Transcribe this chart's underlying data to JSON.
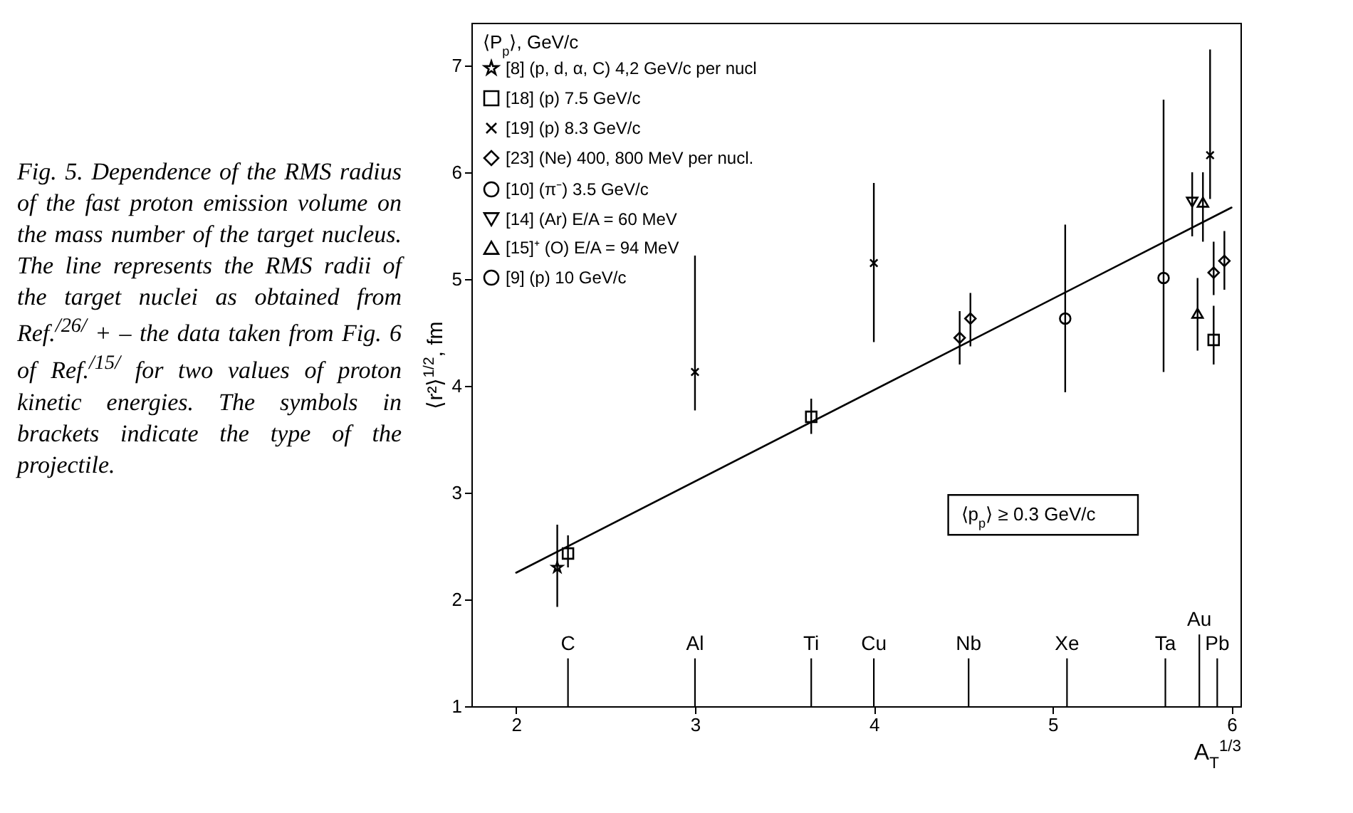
{
  "chart_data": {
    "type": "scatter",
    "xlabel": "A$_{T}$$^{1/3}$",
    "ylabel": "⟨r²⟩$^{1/2}$, fm",
    "legend_title": "⟨P$_{p}$⟩, GeV/c",
    "legend": "top left",
    "grid": false,
    "xlim": [
      1.75,
      6.05
    ],
    "xticks": [
      2,
      3,
      4,
      5,
      6
    ],
    "ylim": [
      1,
      7.4
    ],
    "yticks": [
      1,
      2,
      3,
      4,
      5,
      6,
      7
    ],
    "series": [
      {
        "name": "[8] (p, d, α, C) 4,2 GeV/c per nucl",
        "color": "#000000",
        "marker": "star",
        "x": [
          2.23
        ],
        "values": [
          2.3
        ],
        "errors": [
          [
            1.93,
            2.7
          ]
        ]
      },
      {
        "name": "[18] (p) 7.5 GeV/c",
        "color": "#000000",
        "marker": "square",
        "x": [
          2.29,
          3.65,
          5.9
        ],
        "values": [
          2.43,
          3.71,
          4.43
        ],
        "errors": [
          [
            2.3,
            2.6
          ],
          [
            3.55,
            3.88
          ],
          [
            4.2,
            4.75
          ]
        ]
      },
      {
        "name": "[19] (p) 8.3 GeV/c",
        "color": "#000000",
        "marker": "cross",
        "x": [
          3.0,
          4.0,
          5.88
        ],
        "values": [
          4.13,
          5.15,
          6.16
        ],
        "errors": [
          [
            3.77,
            5.22
          ],
          [
            4.41,
            5.9
          ],
          [
            5.75,
            7.15
          ]
        ]
      },
      {
        "name": "[23] (Ne) 400, 800 MeV per nucl.",
        "color": "#000000",
        "marker": "diamond",
        "x": [
          4.48,
          5.9
        ],
        "values": [
          4.45,
          5.06
        ],
        "errors": [
          [
            4.2,
            4.7
          ],
          [
            4.85,
            5.35
          ]
        ]
      },
      {
        "color": "#000000",
        "marker": "diamond",
        "x": [
          4.54,
          5.96
        ],
        "values": [
          4.63,
          5.17
        ],
        "errors": [
          [
            4.37,
            4.87
          ],
          [
            4.9,
            5.45
          ]
        ]
      },
      {
        "name": "[10] (π⁻) 3.5 GeV/c",
        "color": "#000000",
        "marker": "circle",
        "x": [
          5.07
        ],
        "values": [
          4.63
        ],
        "errors": [
          [
            3.94,
            5.51
          ]
        ]
      },
      {
        "name": "[14] (Ar) E/A = 60 MeV",
        "color": "#000000",
        "marker": "triangle-down",
        "x": [
          5.78
        ],
        "values": [
          5.72
        ],
        "errors": [
          [
            5.4,
            6.0
          ]
        ]
      },
      {
        "name": "[15]⁺ (O) E/A = 94 MeV",
        "color": "#000000",
        "marker": "triangle",
        "x": [
          5.84
        ],
        "values": [
          5.72
        ],
        "errors": [
          [
            5.35,
            6.0
          ]
        ]
      },
      {
        "color": "#000000",
        "marker": "triangle",
        "x": [
          5.81
        ],
        "values": [
          4.68
        ],
        "errors": [
          [
            4.33,
            5.01
          ]
        ]
      },
      {
        "name": "[9] (p) 10 GeV/c",
        "color": "#000000",
        "marker": "circle",
        "x": [
          5.62
        ],
        "values": [
          5.01
        ],
        "errors": [
          [
            4.13,
            6.68
          ]
        ]
      },
      {
        "type": "line",
        "color": "#000000",
        "x": [
          2,
          6
        ],
        "values": [
          2.25,
          5.67
        ]
      }
    ],
    "annotations": [
      "Fig. 5. Dependence of the RMS radius of the fast proton emission volume on the mass number of the target nucleus. The line represents the RMS radii of the target nuclei as obtained from Ref.$^{/26/}$ + – the data taken from Fig. 6 of Ref.$^{/15/}$ for two values of proton kinetic energies. The symbols in brackets indicate the type of the projectile.",
      "⟨p$_{p}$⟩ ≥ 0.3 GeV/c"
    ],
    "ref_lines": [
      {
        "axis": "x",
        "value": 2.29,
        "label": "C"
      },
      {
        "axis": "x",
        "value": 3.0,
        "label": "Al"
      },
      {
        "axis": "x",
        "value": 3.65,
        "label": "Ti"
      },
      {
        "axis": "x",
        "value": 4.0,
        "label": "Cu"
      },
      {
        "axis": "x",
        "value": 4.53,
        "label": "Nb"
      },
      {
        "axis": "x",
        "value": 5.08,
        "label": "Xe"
      },
      {
        "axis": "x",
        "value": 5.63,
        "label": "Ta"
      },
      {
        "axis": "x",
        "value": 5.82,
        "label": "Au"
      },
      {
        "axis": "x",
        "value": 5.92,
        "label": "Pb"
      }
    ]
  }
}
